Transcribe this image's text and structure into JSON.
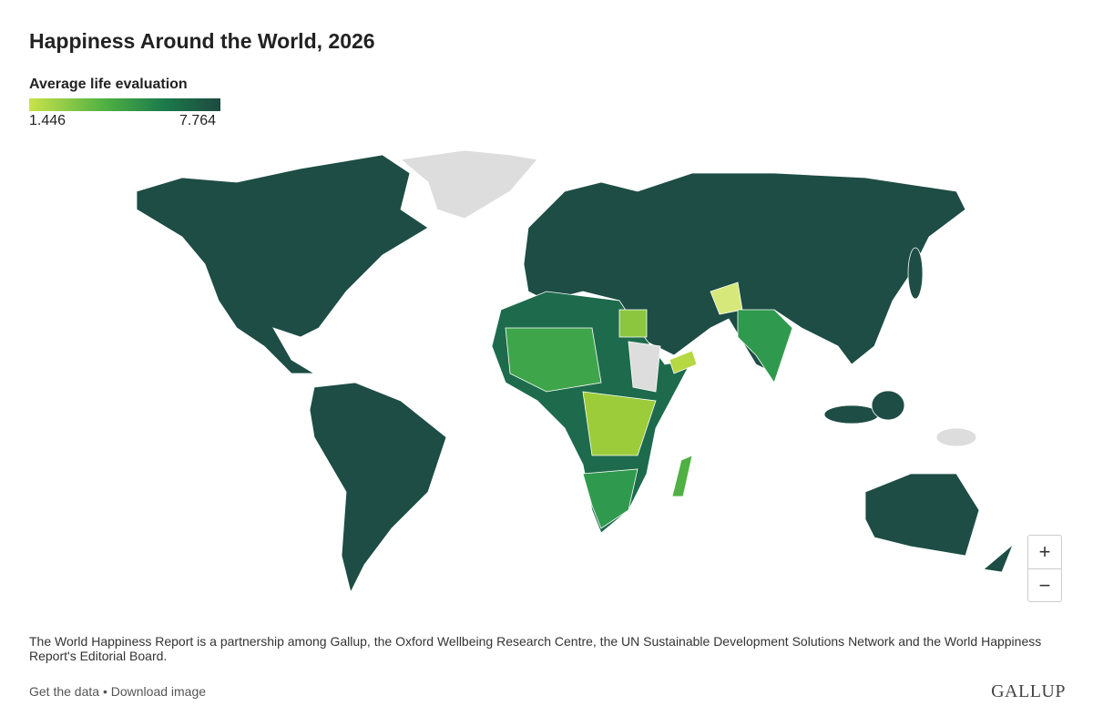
{
  "header": {
    "title": "Happiness Around the World, 2026"
  },
  "legend": {
    "title": "Average life evaluation",
    "min": 1.446,
    "max": 7.764
  },
  "zoom": {
    "in": "+",
    "out": "−"
  },
  "footnote": "The World Happiness Report is a partnership among Gallup, the Oxford Wellbeing Research Centre, the UN Sustainable Development Solutions Network and the World Happiness Report's Editorial Board.",
  "links": {
    "items": [
      "Get the data",
      "Download image"
    ],
    "separator": "•"
  },
  "brand": "GALLUP"
}
